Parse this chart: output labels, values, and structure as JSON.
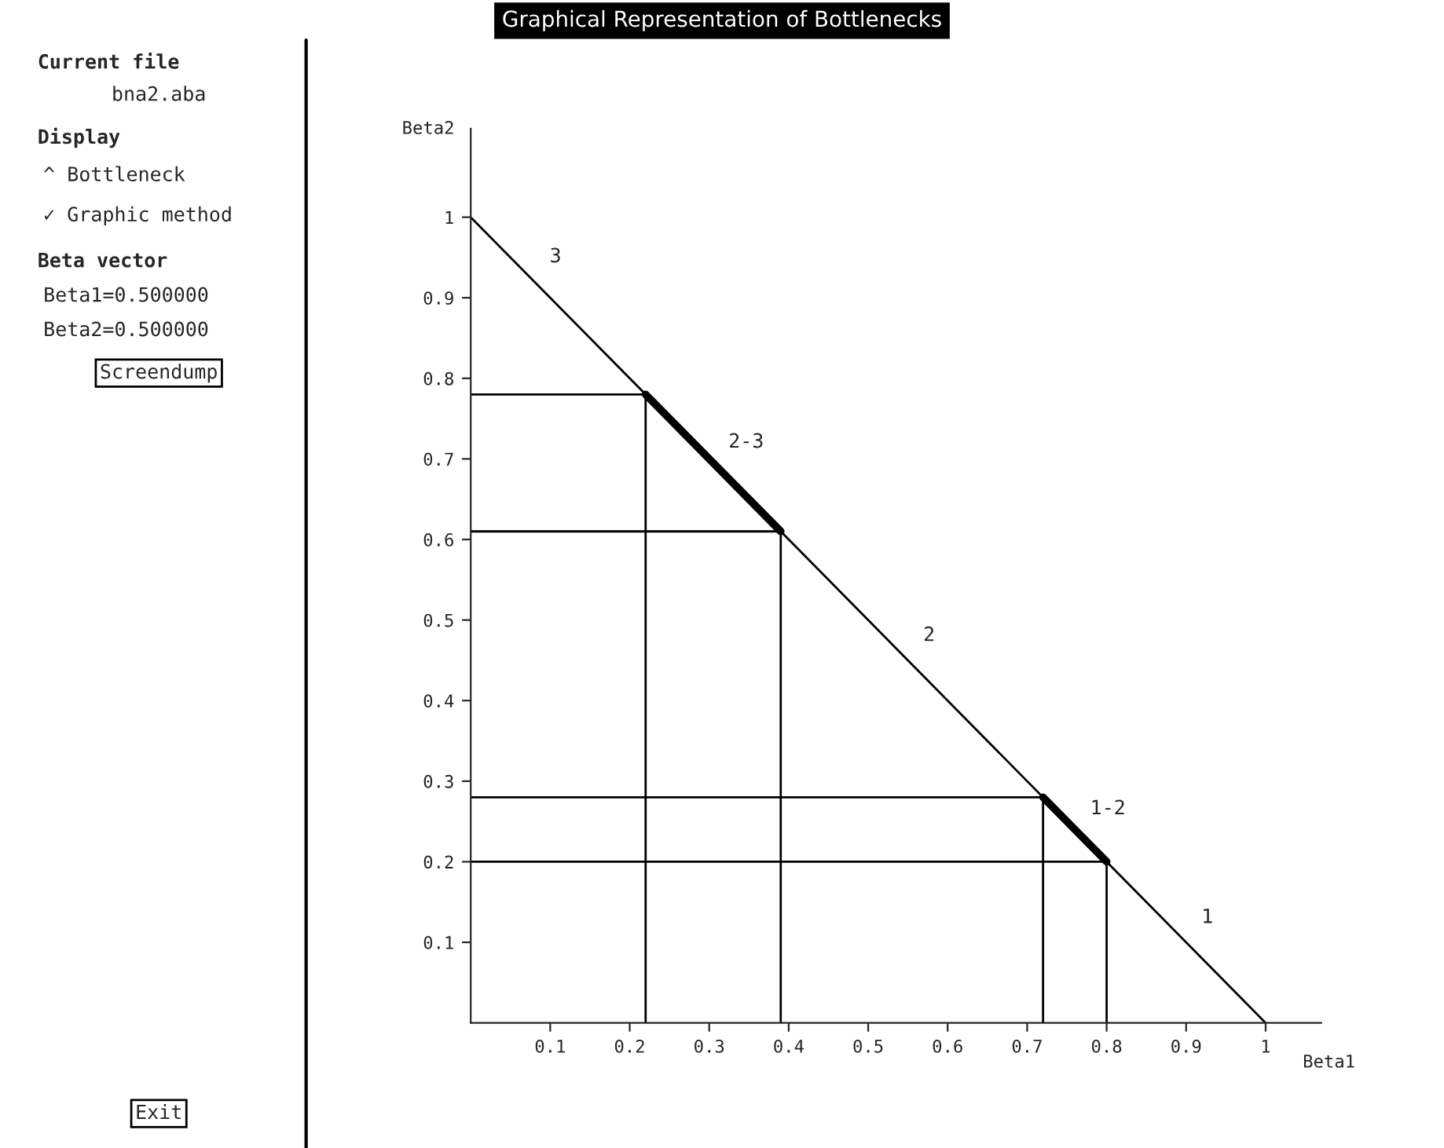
{
  "chart_data": {
    "type": "line",
    "title": "Graphical Representation of Bottlenecks",
    "xlabel": "Beta1",
    "ylabel": "Beta2",
    "xlim": [
      0,
      1.07
    ],
    "ylim": [
      0,
      1.11
    ],
    "xticks": [
      0.1,
      0.2,
      0.3,
      0.4,
      0.5,
      0.6,
      0.7,
      0.8,
      0.9,
      1
    ],
    "yticks": [
      0.1,
      0.2,
      0.3,
      0.4,
      0.5,
      0.6,
      0.7,
      0.8,
      0.9,
      1
    ],
    "grid": false,
    "marker": "none",
    "line_style": "solid",
    "series": [
      {
        "color": "#000000",
        "x": [
          0,
          0.22
        ],
        "values": [
          1,
          0.78
        ]
      },
      {
        "name": "2-3",
        "color": "#000000",
        "x": [
          0.22,
          0.39
        ],
        "values": [
          0.78,
          0.61
        ]
      },
      {
        "color": "#000000",
        "x": [
          0.39,
          0.72
        ],
        "values": [
          0.61,
          0.28
        ]
      },
      {
        "name": "1-2",
        "color": "#000000",
        "x": [
          0.72,
          0.8
        ],
        "values": [
          0.28,
          0.2
        ]
      },
      {
        "color": "#000000",
        "x": [
          0.8,
          1
        ],
        "values": [
          0.2,
          0
        ]
      },
      {
        "color": "#000000",
        "x": [
          0,
          0.22
        ],
        "values": [
          0.78,
          0.78
        ]
      },
      {
        "color": "#000000",
        "x": [
          0.22,
          0.22
        ],
        "values": [
          0,
          0.78
        ]
      },
      {
        "color": "#000000",
        "x": [
          0,
          0.39
        ],
        "values": [
          0.61,
          0.61
        ]
      },
      {
        "color": "#000000",
        "x": [
          0.39,
          0.39
        ],
        "values": [
          0,
          0.61
        ]
      },
      {
        "color": "#000000",
        "x": [
          0,
          0.72
        ],
        "values": [
          0.28,
          0.28
        ]
      },
      {
        "color": "#000000",
        "x": [
          0.72,
          0.72
        ],
        "values": [
          0,
          0.28
        ]
      },
      {
        "color": "#000000",
        "x": [
          0,
          0.8
        ],
        "values": [
          0.2,
          0.2
        ]
      },
      {
        "color": "#000000",
        "x": [
          0.8,
          0.8
        ],
        "values": [
          0,
          0.2
        ]
      }
    ],
    "annotations": [
      "Current file",
      "bna2.aba",
      "Display",
      "^ Bottleneck",
      "✓ Graphic method",
      "Beta vector",
      "Beta1=0.500000",
      "Beta2=0.500000",
      "Screendump",
      "Exit",
      {
        "text": "3",
        "x": 0.08,
        "y": 0.92
      },
      {
        "text": "2",
        "x": 0.55,
        "y": 0.45
      },
      {
        "text": "1",
        "x": 0.9,
        "y": 0.1
      }
    ]
  }
}
